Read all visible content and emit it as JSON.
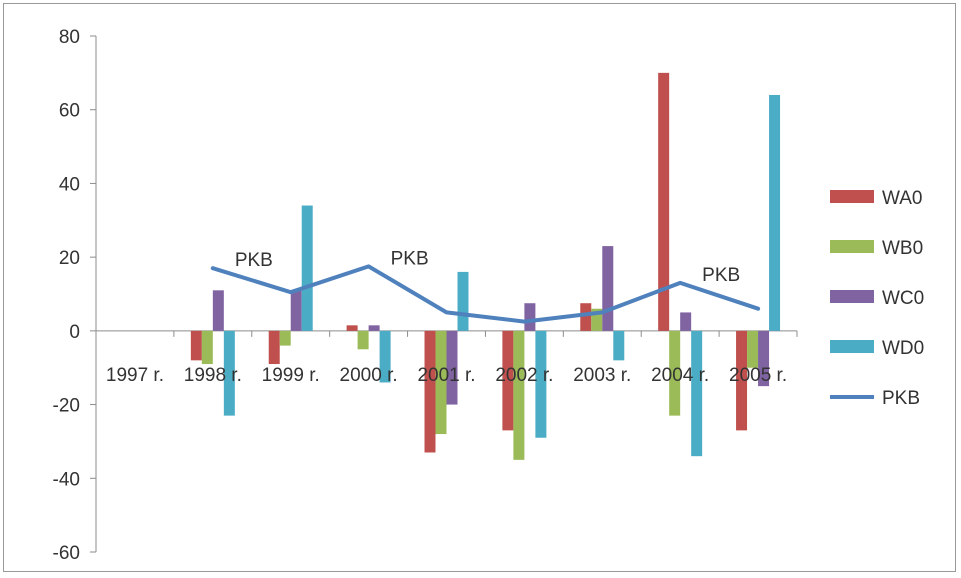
{
  "chart_data": {
    "type": "bar",
    "categories": [
      "1997 r.",
      "1998 r.",
      "1999 r.",
      "2000 r.",
      "2001 r.",
      "2002 r.",
      "2003 r.",
      "2004 r.",
      "2005 r."
    ],
    "series": [
      {
        "name": "WA0",
        "type": "bar",
        "color": "#c0504d",
        "values": [
          0,
          -8,
          -9,
          1.5,
          -33,
          -27,
          7.5,
          70,
          -27
        ]
      },
      {
        "name": "WB0",
        "type": "bar",
        "color": "#9bbb59",
        "values": [
          0,
          -9,
          -4,
          -5,
          -28,
          -35,
          6,
          -23,
          -10
        ]
      },
      {
        "name": "WC0",
        "type": "bar",
        "color": "#8064a2",
        "values": [
          0,
          11,
          11,
          1.5,
          -20,
          7.5,
          23,
          5,
          -15
        ]
      },
      {
        "name": "WD0",
        "type": "bar",
        "color": "#4bacc6",
        "values": [
          0,
          -23,
          34,
          -14,
          16,
          -29,
          -8,
          -34,
          64
        ]
      },
      {
        "name": "PKB",
        "type": "line",
        "color": "#4f81bd",
        "values": [
          null,
          17,
          10.5,
          17.5,
          5,
          2.5,
          5,
          13,
          6
        ]
      }
    ],
    "line_labels": [
      {
        "text": "PKB",
        "category": "1998 r."
      },
      {
        "text": "PKB",
        "category": "2000 r."
      },
      {
        "text": "PKB",
        "category": "2004 r."
      }
    ],
    "title": "",
    "xlabel": "",
    "ylabel": "",
    "ylim": [
      -60,
      80
    ],
    "yticks": [
      80,
      60,
      40,
      20,
      0,
      -20,
      -40,
      -60
    ],
    "grid": false,
    "legend_position": "right"
  }
}
